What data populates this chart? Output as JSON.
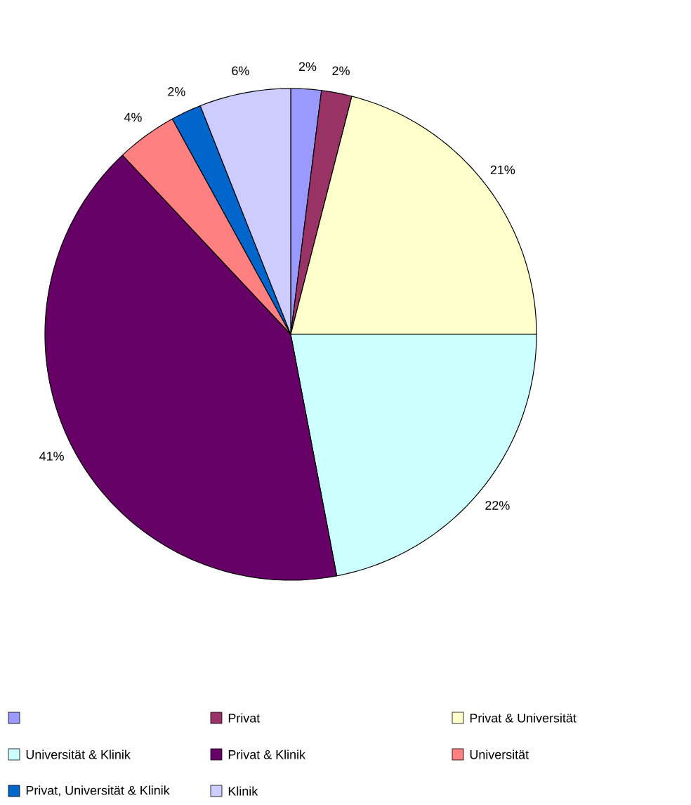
{
  "chart_data": {
    "type": "pie",
    "categories": [
      null,
      "Privat",
      "Privat & Universität",
      "Universität & Klinik",
      "Privat & Klinik",
      "Universität",
      "Privat, Universität & Klinik",
      "Klinik"
    ],
    "values": [
      2,
      2,
      21,
      22,
      41,
      4,
      2,
      6
    ],
    "colors": [
      "#9999ff",
      "#993366",
      "#ffffcc",
      "#ccffff",
      "#660066",
      "#ff8080",
      "#0066cc",
      "#ccccff"
    ],
    "value_labels": [
      "2%",
      "2%",
      "21%",
      "22%",
      "41%",
      "4%",
      "2%",
      "6%"
    ],
    "legend": "bottom"
  }
}
